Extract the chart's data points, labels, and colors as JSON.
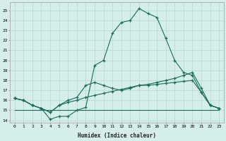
{
  "title": "",
  "xlabel": "Humidex (Indice chaleur)",
  "x_ticks": [
    0,
    1,
    2,
    3,
    4,
    5,
    6,
    7,
    8,
    9,
    10,
    11,
    12,
    13,
    14,
    15,
    16,
    17,
    18,
    19,
    20,
    21,
    22,
    23
  ],
  "ylim": [
    13.8,
    25.8
  ],
  "xlim": [
    -0.5,
    23.5
  ],
  "yticks": [
    14,
    15,
    16,
    17,
    18,
    19,
    20,
    21,
    22,
    23,
    24,
    25
  ],
  "bg_color": "#d6eeea",
  "grid_color": "#b8ddd8",
  "line_color": "#1a6b5a",
  "series1": [
    16.2,
    16.0,
    15.5,
    15.2,
    14.1,
    14.4,
    14.4,
    15.0,
    15.3,
    19.5,
    20.0,
    22.7,
    23.8,
    24.0,
    25.2,
    24.7,
    24.3,
    22.2,
    20.0,
    18.8,
    18.5,
    16.8,
    15.5,
    15.2
  ],
  "series2": [
    16.2,
    16.0,
    15.5,
    15.2,
    14.8,
    15.5,
    16.0,
    16.3,
    17.5,
    17.8,
    17.5,
    17.2,
    17.0,
    17.2,
    17.5,
    17.6,
    17.8,
    18.0,
    18.2,
    18.5,
    18.8,
    17.2,
    15.5,
    15.2
  ],
  "series3": [
    16.2,
    16.0,
    15.5,
    15.2,
    14.8,
    15.5,
    15.8,
    16.0,
    16.3,
    16.5,
    16.7,
    16.9,
    17.1,
    17.3,
    17.5,
    17.5,
    17.6,
    17.7,
    17.8,
    17.9,
    18.0,
    16.8,
    15.5,
    15.2
  ],
  "series4": [
    15.0,
    15.0,
    15.0,
    15.0,
    15.0,
    15.0,
    15.0,
    15.0,
    15.0,
    15.0,
    15.0,
    15.0,
    15.0,
    15.0,
    15.0,
    15.0,
    15.0,
    15.0,
    15.0,
    15.0,
    15.0,
    15.0,
    15.0,
    15.0
  ]
}
